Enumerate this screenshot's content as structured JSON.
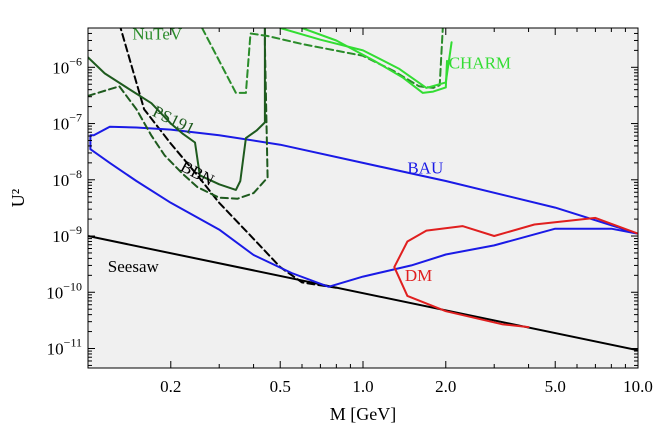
{
  "chart_data": {
    "type": "line",
    "title": "",
    "xlabel": "M [GeV]",
    "ylabel": "U²",
    "xscale": "log",
    "yscale": "log",
    "xlim": [
      0.1,
      10.0
    ],
    "ylim": [
      4.5e-12,
      5e-06
    ],
    "grid": false,
    "legend": "none",
    "background_color": "#f0f0f0",
    "x_ticks": [
      {
        "value": 0.2,
        "label": "0.2"
      },
      {
        "value": 0.5,
        "label": "0.5"
      },
      {
        "value": 1.0,
        "label": "1.0"
      },
      {
        "value": 2.0,
        "label": "2.0"
      },
      {
        "value": 5.0,
        "label": "5.0"
      },
      {
        "value": 10.0,
        "label": "10.0"
      }
    ],
    "y_ticks": [
      {
        "value": 1e-11,
        "base": "10",
        "exp": "−11"
      },
      {
        "value": 1e-10,
        "base": "10",
        "exp": "−10"
      },
      {
        "value": 1e-09,
        "base": "10",
        "exp": "−9"
      },
      {
        "value": 1e-08,
        "base": "10",
        "exp": "−8"
      },
      {
        "value": 1e-07,
        "base": "10",
        "exp": "−7"
      },
      {
        "value": 1e-06,
        "base": "10",
        "exp": "−6"
      }
    ],
    "series": [
      {
        "name": "Seesaw",
        "color": "#000000",
        "dash": false,
        "points": [
          [
            0.1,
            1e-09
          ],
          [
            10.0,
            9.3e-12
          ]
        ]
      },
      {
        "name": "BBN",
        "color": "#000000",
        "dash": true,
        "points": [
          [
            0.13,
            6e-06
          ],
          [
            0.16,
            1.8e-07
          ],
          [
            0.2,
            4.4e-08
          ],
          [
            0.25,
            1.2e-08
          ],
          [
            0.3,
            3.9e-09
          ],
          [
            0.4,
            8.9e-10
          ],
          [
            0.5,
            2.8e-10
          ],
          [
            0.6,
            1.5e-10
          ],
          [
            0.8,
            1.2e-10
          ]
        ]
      },
      {
        "name": "BAU",
        "color": "#1a1ae6",
        "dash": false,
        "points": [
          [
            0.105,
            6.2e-08
          ],
          [
            0.12,
            8.8e-08
          ],
          [
            0.15,
            8.5e-08
          ],
          [
            0.2,
            7.8e-08
          ],
          [
            0.3,
            6.2e-08
          ],
          [
            0.5,
            4.2e-08
          ],
          [
            1.0,
            2e-08
          ],
          [
            2.0,
            9.5e-09
          ],
          [
            5.0,
            3.2e-09
          ],
          [
            10.0,
            1.1e-09
          ],
          [
            8.0,
            1.35e-09
          ],
          [
            5.0,
            1.35e-09
          ],
          [
            3.0,
            6.8e-10
          ],
          [
            2.0,
            4.7e-10
          ],
          [
            1.5,
            3e-10
          ],
          [
            1.0,
            1.9e-10
          ],
          [
            0.75,
            1.25e-10
          ],
          [
            0.55,
            2.2e-10
          ],
          [
            0.4,
            4.6e-10
          ],
          [
            0.3,
            1.3e-09
          ],
          [
            0.2,
            3.9e-09
          ],
          [
            0.15,
            9.5e-09
          ],
          [
            0.12,
            2e-08
          ],
          [
            0.102,
            3.5e-08
          ],
          [
            0.102,
            6.2e-08
          ],
          [
            0.105,
            6.2e-08
          ]
        ]
      },
      {
        "name": "DM",
        "color": "#e01f1f",
        "dash": false,
        "points": [
          [
            10.0,
            1.1e-09
          ],
          [
            7.0,
            2.1e-09
          ],
          [
            4.2,
            1.6e-09
          ],
          [
            3.0,
            1e-09
          ],
          [
            2.3,
            1.5e-09
          ],
          [
            1.7,
            1.25e-09
          ],
          [
            1.45,
            8e-10
          ],
          [
            1.3,
            2.8e-10
          ],
          [
            1.45,
            8.6e-11
          ],
          [
            2.0,
            4.6e-11
          ],
          [
            3.2,
            2.7e-11
          ],
          [
            4.0,
            2.4e-11
          ]
        ]
      },
      {
        "name": "PS191",
        "color": "#1e5a1e",
        "dash": false,
        "points": [
          [
            0.1,
            1.5e-06
          ],
          [
            0.115,
            7.8e-07
          ],
          [
            0.14,
            4.2e-07
          ],
          [
            0.17,
            2.3e-07
          ],
          [
            0.2,
            1e-07
          ],
          [
            0.22,
            6.7e-08
          ],
          [
            0.245,
            4.6e-08
          ],
          [
            0.255,
            1.2e-08
          ],
          [
            0.3,
            8.3e-09
          ],
          [
            0.345,
            6.6e-09
          ],
          [
            0.358,
            9.5e-09
          ],
          [
            0.375,
            5.5e-08
          ],
          [
            0.41,
            7.5e-08
          ],
          [
            0.44,
            1.05e-07
          ],
          [
            0.44,
            5e-06
          ]
        ]
      },
      {
        "name": "PS191",
        "color": "#1e5a1e",
        "dash": true,
        "points": [
          [
            0.1,
            3.1e-07
          ],
          [
            0.13,
            4.6e-07
          ],
          [
            0.15,
            1.8e-07
          ],
          [
            0.17,
            6.1e-08
          ],
          [
            0.19,
            2.7e-08
          ],
          [
            0.22,
            1.3e-08
          ],
          [
            0.25,
            7.4e-09
          ],
          [
            0.3,
            4.8e-09
          ],
          [
            0.35,
            4.6e-09
          ],
          [
            0.4,
            5.8e-09
          ],
          [
            0.45,
            1.1e-08
          ],
          [
            0.44,
            2.5e-06
          ],
          [
            0.44,
            5e-06
          ]
        ]
      },
      {
        "name": "NuTeV",
        "color": "#2a8c2a",
        "dash": true,
        "points": [
          [
            0.26,
            5e-06
          ],
          [
            0.345,
            3.5e-07
          ],
          [
            0.375,
            3.5e-07
          ],
          [
            0.39,
            4e-06
          ],
          [
            0.45,
            3.6e-06
          ],
          [
            0.6,
            2.6e-06
          ],
          [
            1.0,
            1.6e-06
          ],
          [
            1.3,
            8.5e-07
          ],
          [
            1.6,
            4.6e-07
          ],
          [
            1.8,
            4.3e-07
          ],
          [
            1.9,
            4.8e-07
          ],
          [
            1.95,
            5e-06
          ]
        ]
      },
      {
        "name": "CHARM",
        "color": "#33dd33",
        "dash": false,
        "points": [
          [
            0.5,
            5e-06
          ],
          [
            0.7,
            3.1e-06
          ],
          [
            1.0,
            2e-06
          ],
          [
            1.35,
            9.5e-07
          ],
          [
            1.7,
            4.3e-07
          ],
          [
            2.0,
            5.4e-07
          ],
          [
            2.1,
            2.8e-06
          ]
        ]
      },
      {
        "name": "CHARM",
        "color": "#33dd33",
        "dash": false,
        "points": [
          [
            0.6,
            5e-06
          ],
          [
            0.8,
            3e-06
          ],
          [
            1.1,
            1.3e-06
          ],
          [
            1.4,
            6.5e-07
          ],
          [
            1.65,
            3.5e-07
          ],
          [
            1.8,
            3.7e-07
          ],
          [
            2.0,
            4.4e-07
          ],
          [
            2.02,
            1.3e-06
          ]
        ]
      }
    ],
    "annotations": [
      {
        "text": "NuTeV",
        "x": 0.145,
        "y": 3.1e-06,
        "color": "#2a8c2a",
        "rotate": 0
      },
      {
        "text": "CHARM",
        "x": 2.05,
        "y": 9.5e-07,
        "color": "#33dd33",
        "rotate": 0
      },
      {
        "text": "PS191",
        "x": 0.17,
        "y": 1.4e-07,
        "color": "#1e5a1e",
        "rotate": 26
      },
      {
        "text": "BAU",
        "x": 1.45,
        "y": 1.3e-08,
        "color": "#1a1ae6",
        "rotate": 0
      },
      {
        "text": "BBN",
        "x": 0.215,
        "y": 1.5e-08,
        "color": "#000000",
        "rotate": 28
      },
      {
        "text": "DM",
        "x": 1.42,
        "y": 1.6e-10,
        "color": "#e01f1f",
        "rotate": 0
      },
      {
        "text": "Seesaw",
        "x": 0.118,
        "y": 2.3e-10,
        "color": "#000000",
        "rotate": 0
      }
    ]
  }
}
